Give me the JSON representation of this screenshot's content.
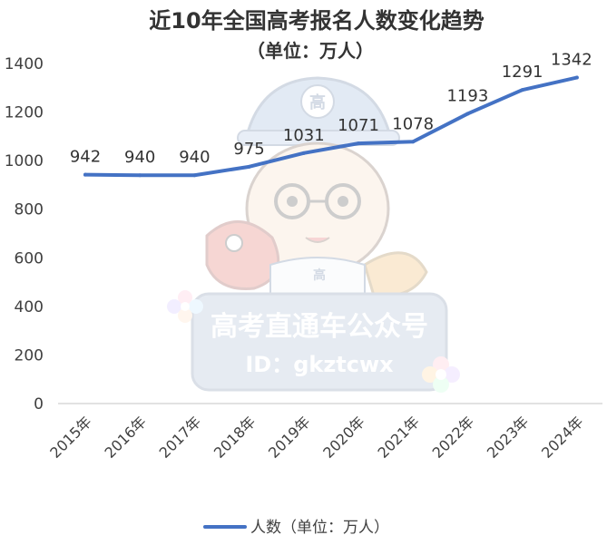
{
  "chart_data": {
    "type": "line",
    "title": "近10年全国高考报名人数变化趋势",
    "subtitle": "（单位：万人）",
    "categories": [
      "2015年",
      "2016年",
      "2017年",
      "2018年",
      "2019年",
      "2020年",
      "2021年",
      "2022年",
      "2023年",
      "2024年"
    ],
    "series": [
      {
        "name": "人数（单位：万人）",
        "values": [
          942,
          940,
          940,
          975,
          1031,
          1071,
          1078,
          1193,
          1291,
          1342
        ]
      }
    ],
    "data_labels": [
      "942",
      "940",
      "940",
      "975",
      "1031",
      "1071",
      "1078",
      "1193",
      "1291",
      "1342"
    ],
    "y_ticks": [
      "0",
      "200",
      "400",
      "600",
      "800",
      "1000",
      "1200",
      "1400"
    ],
    "ylim": [
      0,
      1400
    ],
    "grid": false,
    "legend_position": "bottom",
    "line_color": "#4472C4"
  },
  "watermark": {
    "brand": "高考直通车公众号",
    "id_text": "ID：gkztcwx",
    "hat_char": "高",
    "shirt_char": "高"
  }
}
